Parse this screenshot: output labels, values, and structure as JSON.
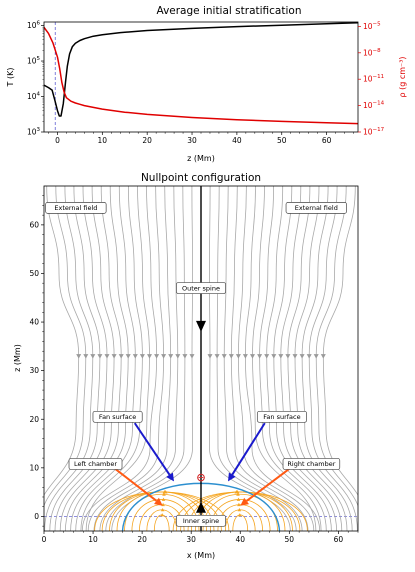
{
  "chart_data": [
    {
      "type": "line",
      "title": "Average initial stratification",
      "xlabel": "z (Mm)",
      "ylabel_left": "T (K)",
      "ylabel_right": "ρ (g cm⁻³)",
      "xlim": [
        -3,
        67
      ],
      "x_ticks": [
        "0",
        "10",
        "20",
        "30",
        "40",
        "50",
        "60"
      ],
      "y_left_scale": "log",
      "y_left_lim_exp": [
        3,
        6.1
      ],
      "y_left_ticks": [
        {
          "base": "10",
          "exp": "3"
        },
        {
          "base": "10",
          "exp": "4"
        },
        {
          "base": "10",
          "exp": "5"
        },
        {
          "base": "10",
          "exp": "6"
        }
      ],
      "y_right_scale": "log",
      "y_right_lim_exp": [
        -17,
        -4.5
      ],
      "y_right_ticks": [
        {
          "base": "10",
          "exp": "−5"
        },
        {
          "base": "10",
          "exp": "−8"
        },
        {
          "base": "10",
          "exp": "−11"
        },
        {
          "base": "10",
          "exp": "−14"
        },
        {
          "base": "10",
          "exp": "−17"
        }
      ],
      "vline_x": -0.5,
      "series": [
        {
          "color": "#000000",
          "axis": "left",
          "log10_values": true,
          "x": [
            -3,
            -2,
            -1.2,
            -0.6,
            0,
            0.4,
            0.8,
            1.3,
            1.8,
            2.2,
            2.7,
            3.3,
            4,
            5,
            6,
            8,
            10,
            14,
            20,
            30,
            40,
            50,
            60,
            67
          ],
          "y": [
            4.32,
            4.25,
            4.18,
            3.9,
            3.6,
            3.45,
            3.45,
            3.8,
            4.4,
            4.85,
            5.2,
            5.4,
            5.5,
            5.58,
            5.63,
            5.7,
            5.74,
            5.8,
            5.86,
            5.92,
            5.97,
            6.01,
            6.05,
            6.08
          ]
        },
        {
          "color": "#e00000",
          "axis": "right",
          "log10_values": true,
          "x": [
            -3,
            -2,
            -1,
            0,
            0.5,
            1,
            1.5,
            2,
            3,
            4,
            5,
            6,
            8,
            10,
            15,
            20,
            30,
            40,
            50,
            60,
            67
          ],
          "y": [
            -5.1,
            -5.8,
            -6.9,
            -8.5,
            -9.8,
            -11.4,
            -12.5,
            -13.1,
            -13.5,
            -13.7,
            -13.85,
            -14.0,
            -14.2,
            -14.4,
            -14.75,
            -15.0,
            -15.35,
            -15.6,
            -15.8,
            -15.95,
            -16.05
          ]
        }
      ]
    },
    {
      "type": "diagram-plot",
      "title": "Nullpoint configuration",
      "xlabel": "x (Mm)",
      "ylabel": "z (Mm)",
      "xlim": [
        0,
        64
      ],
      "ylim": [
        -3,
        68
      ],
      "x_ticks": [
        "0",
        "10",
        "20",
        "30",
        "40",
        "50",
        "60"
      ],
      "y_ticks": [
        "0",
        "10",
        "20",
        "30",
        "40",
        "50",
        "60"
      ],
      "null_point": [
        32,
        8
      ],
      "fan_dome_half_width": 16,
      "marker_row_z": 33,
      "colors": {
        "field_lines": "#a9a9a9",
        "chamber_lines": "#f5a623",
        "fan_dome": "#2c8fcf",
        "spine": "#000000",
        "blue_arrow": "#1a1acc",
        "orange_arrow": "#ff5a14",
        "null_marker": "#d42a2a"
      },
      "annotations": [
        {
          "label": "External field",
          "x": 6.5,
          "z": 63.5
        },
        {
          "label": "External field",
          "x": 55.5,
          "z": 63.5
        },
        {
          "label": "Outer spine",
          "x": 32,
          "z": 47
        },
        {
          "label": "Fan surface",
          "x": 15,
          "z": 20.5
        },
        {
          "label": "Fan surface",
          "x": 48.5,
          "z": 20.5
        },
        {
          "label": "Left chamber",
          "x": 10.5,
          "z": 10.8
        },
        {
          "label": "Right chamber",
          "x": 54.5,
          "z": 10.8
        },
        {
          "label": "Inner spine",
          "x": 32,
          "z": -0.9
        }
      ]
    }
  ]
}
